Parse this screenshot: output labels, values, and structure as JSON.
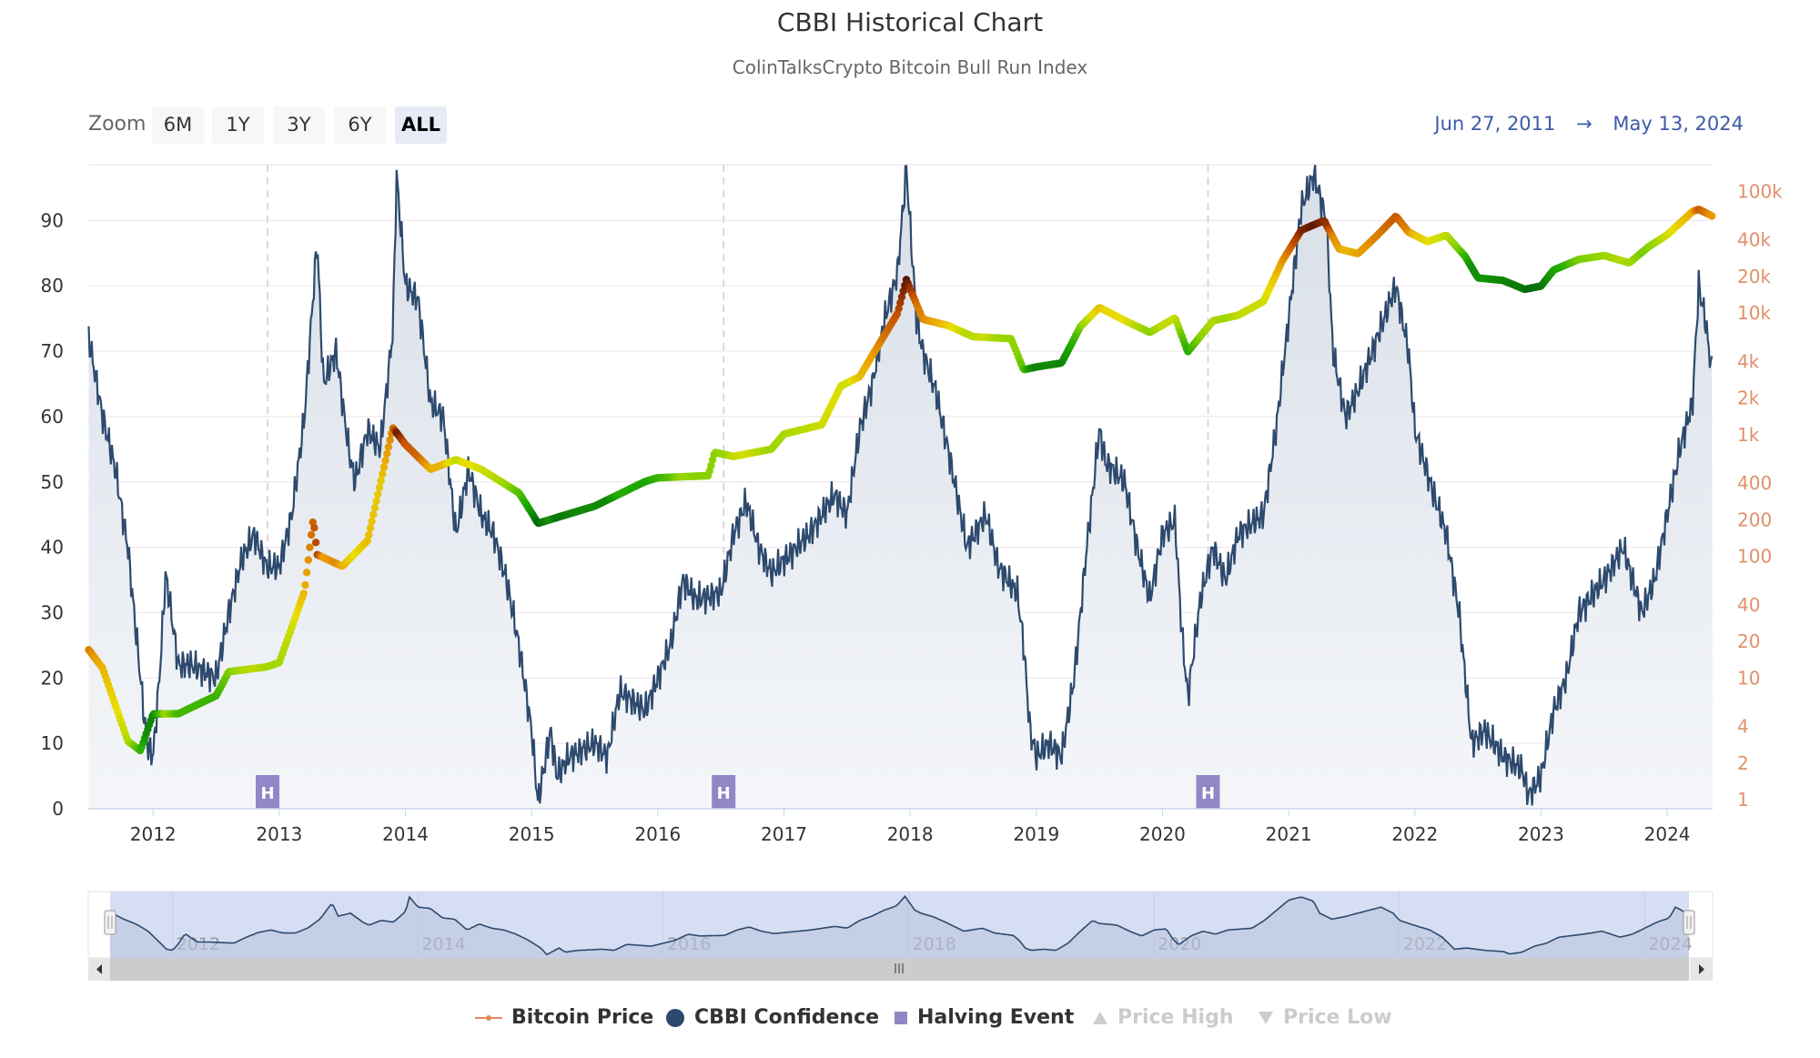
{
  "header": {
    "title": "CBBI Historical Chart",
    "subtitle": "ColinTalksCrypto Bitcoin Bull Run Index"
  },
  "range_selector": {
    "label": "Zoom",
    "buttons": [
      "6M",
      "1Y",
      "3Y",
      "6Y",
      "ALL"
    ],
    "selected": "ALL",
    "from": "Jun 27, 2011",
    "arrow": "→",
    "to": "May 13, 2024"
  },
  "legend": [
    {
      "label": "Bitcoin Price",
      "icon": "line-dot-icon",
      "color": "#e8875a",
      "enabled": true
    },
    {
      "label": "CBBI Confidence",
      "icon": "circle-icon",
      "color": "#2d4a6e",
      "enabled": true
    },
    {
      "label": "Halving Event",
      "icon": "square-icon",
      "color": "#9187c7",
      "enabled": true
    },
    {
      "label": "Price High",
      "icon": "triangle-up-icon",
      "color": "#cccccc",
      "enabled": false
    },
    {
      "label": "Price Low",
      "icon": "triangle-down-icon",
      "color": "#cccccc",
      "enabled": false
    }
  ],
  "navigator": {
    "year_labels": [
      "2012",
      "2014",
      "2016",
      "2018",
      "2020",
      "2022",
      "2024"
    ]
  },
  "chart_data": {
    "type": "line",
    "title": "CBBI Historical Chart",
    "subtitle": "ColinTalksCrypto Bitcoin Bull Run Index",
    "x_range": [
      "2011-06-27",
      "2024-05-13"
    ],
    "x_tick_labels": [
      "2012",
      "2013",
      "2014",
      "2015",
      "2016",
      "2017",
      "2018",
      "2019",
      "2020",
      "2021",
      "2022",
      "2023",
      "2024"
    ],
    "left_axis": {
      "ticks": [
        "0",
        "10",
        "20",
        "30",
        "40",
        "50",
        "60",
        "70",
        "80",
        "90"
      ],
      "range": [
        0,
        98.5
      ]
    },
    "right_axis": {
      "scale": "log",
      "ticks": [
        "1",
        "2",
        "4",
        "10",
        "20",
        "40",
        "100",
        "200",
        "400",
        "1k",
        "2k",
        "4k",
        "10k",
        "20k",
        "40k",
        "100k"
      ],
      "range": [
        1,
        100000
      ],
      "color": "#e0906a"
    },
    "grid": true,
    "legend_position": "bottom",
    "halving_events": [
      {
        "date": "2012-11-28",
        "label": "H"
      },
      {
        "date": "2016-07-09",
        "label": "H"
      },
      {
        "date": "2020-05-11",
        "label": "H"
      }
    ],
    "series": [
      {
        "name": "CBBI Confidence",
        "axis": "left",
        "color": "#2d4a6e",
        "x": [
          2011.49,
          2011.6,
          2011.7,
          2011.8,
          2011.9,
          2011.95,
          2012.0,
          2012.05,
          2012.1,
          2012.2,
          2012.3,
          2012.5,
          2012.6,
          2012.7,
          2012.8,
          2012.9,
          2013.0,
          2013.1,
          2013.2,
          2013.3,
          2013.35,
          2013.45,
          2013.55,
          2013.6,
          2013.7,
          2013.8,
          2013.9,
          2013.93,
          2014.0,
          2014.1,
          2014.2,
          2014.3,
          2014.4,
          2014.5,
          2014.6,
          2014.7,
          2014.8,
          2014.9,
          2015.0,
          2015.05,
          2015.15,
          2015.2,
          2015.3,
          2015.5,
          2015.6,
          2015.7,
          2015.9,
          2016.0,
          2016.1,
          2016.2,
          2016.3,
          2016.5,
          2016.6,
          2016.7,
          2016.8,
          2016.9,
          2017.0,
          2017.2,
          2017.4,
          2017.5,
          2017.6,
          2017.7,
          2017.8,
          2017.9,
          2017.97,
          2018.05,
          2018.1,
          2018.2,
          2018.3,
          2018.45,
          2018.6,
          2018.7,
          2018.85,
          2018.9,
          2018.95,
          2019.0,
          2019.1,
          2019.2,
          2019.3,
          2019.4,
          2019.5,
          2019.55,
          2019.7,
          2019.8,
          2019.9,
          2020.0,
          2020.1,
          2020.15,
          2020.2,
          2020.3,
          2020.4,
          2020.5,
          2020.6,
          2020.8,
          2020.9,
          2021.0,
          2021.1,
          2021.2,
          2021.3,
          2021.35,
          2021.45,
          2021.55,
          2021.7,
          2021.85,
          2021.95,
          2022.0,
          2022.15,
          2022.25,
          2022.35,
          2022.45,
          2022.55,
          2022.7,
          2022.85,
          2022.9,
          2023.0,
          2023.1,
          2023.2,
          2023.3,
          2023.5,
          2023.65,
          2023.8,
          2023.9,
          2024.0,
          2024.1,
          2024.2,
          2024.25,
          2024.3,
          2024.36
        ],
        "values": [
          72,
          60,
          52,
          40,
          20,
          10,
          8,
          20,
          36,
          22,
          22,
          20,
          30,
          38,
          42,
          37,
          37,
          45,
          60,
          87,
          65,
          70,
          55,
          50,
          58,
          55,
          73,
          97,
          80,
          78,
          62,
          60,
          42,
          52,
          45,
          42,
          35,
          25,
          12,
          1,
          12,
          5,
          8,
          10,
          8,
          18,
          15,
          20,
          25,
          35,
          32,
          33,
          42,
          47,
          40,
          36,
          38,
          42,
          48,
          45,
          58,
          65,
          75,
          82,
          98,
          75,
          70,
          64,
          55,
          40,
          45,
          37,
          33,
          25,
          12,
          8,
          10,
          8,
          20,
          40,
          58,
          53,
          50,
          40,
          32,
          42,
          44,
          28,
          17,
          32,
          40,
          35,
          42,
          45,
          58,
          75,
          92,
          97,
          90,
          70,
          60,
          64,
          72,
          80,
          70,
          58,
          48,
          42,
          30,
          10,
          12,
          8,
          6,
          2,
          5,
          15,
          20,
          30,
          35,
          40,
          30,
          35,
          45,
          55,
          62,
          80,
          75,
          66
        ]
      },
      {
        "name": "Bitcoin Price",
        "axis": "right",
        "color_by": "CBBI Confidence",
        "color_scale": [
          "#005f10",
          "#1faa00",
          "#8fd400",
          "#e8e000",
          "#e89a00",
          "#c04a00",
          "#4a0c00"
        ],
        "x": [
          2011.49,
          2011.6,
          2011.8,
          2011.9,
          2012.0,
          2012.2,
          2012.5,
          2012.6,
          2012.9,
          2013.0,
          2013.2,
          2013.27,
          2013.3,
          2013.5,
          2013.7,
          2013.9,
          2014.0,
          2014.2,
          2014.4,
          2014.6,
          2014.9,
          2015.0,
          2015.05,
          2015.5,
          2015.9,
          2016.0,
          2016.4,
          2016.45,
          2016.6,
          2016.9,
          2017.0,
          2017.3,
          2017.45,
          2017.6,
          2017.7,
          2017.9,
          2017.97,
          2018.1,
          2018.3,
          2018.5,
          2018.8,
          2018.9,
          2019.0,
          2019.2,
          2019.35,
          2019.5,
          2019.7,
          2019.9,
          2020.1,
          2020.2,
          2020.4,
          2020.6,
          2020.8,
          2020.95,
          2021.1,
          2021.28,
          2021.4,
          2021.55,
          2021.7,
          2021.85,
          2021.95,
          2022.1,
          2022.25,
          2022.4,
          2022.5,
          2022.7,
          2022.87,
          2023.0,
          2023.1,
          2023.3,
          2023.5,
          2023.7,
          2023.85,
          2024.0,
          2024.2,
          2024.25,
          2024.36
        ],
        "values": [
          17,
          12,
          3,
          2.5,
          5,
          5,
          7,
          11,
          12,
          13,
          50,
          200,
          100,
          80,
          130,
          1100,
          800,
          500,
          600,
          500,
          320,
          220,
          180,
          250,
          400,
          430,
          450,
          700,
          650,
          750,
          1000,
          1200,
          2500,
          3000,
          4500,
          10000,
          19000,
          9000,
          8000,
          6500,
          6300,
          3500,
          3700,
          4000,
          8000,
          11500,
          9000,
          7200,
          9500,
          5000,
          9000,
          10000,
          13000,
          28000,
          50000,
          60000,
          35000,
          32000,
          45000,
          65000,
          48000,
          40000,
          45000,
          30000,
          20000,
          19000,
          16000,
          17000,
          23000,
          28000,
          30000,
          26000,
          35000,
          44000,
          68000,
          71000,
          62000
        ]
      }
    ]
  }
}
